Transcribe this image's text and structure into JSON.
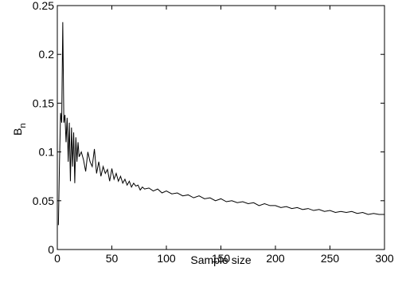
{
  "chart_data": {
    "type": "line",
    "title": "",
    "xlabel": "Sample size",
    "ylabel_main": "B",
    "ylabel_sub": "n",
    "xlim": [
      0,
      300
    ],
    "ylim": [
      0,
      0.25
    ],
    "xticks": [
      0,
      50,
      100,
      150,
      200,
      250,
      300
    ],
    "yticks": [
      0,
      0.05,
      0.1,
      0.15,
      0.2,
      0.25
    ],
    "xtick_labels": [
      "0",
      "50",
      "100",
      "150",
      "200",
      "250",
      "300"
    ],
    "ytick_labels": [
      "0",
      "0.05",
      "0.1",
      "0.15",
      "0.2",
      "0.25"
    ],
    "grid": false,
    "legend": false,
    "line_color": "#000000",
    "series": [
      {
        "x": [
          1,
          2,
          3,
          4,
          5,
          6,
          7,
          8,
          9,
          10,
          11,
          12,
          13,
          14,
          15,
          16,
          17,
          18,
          19,
          20,
          22,
          24,
          26,
          28,
          30,
          32,
          34,
          36,
          38,
          40,
          42,
          44,
          46,
          48,
          50,
          52,
          54,
          56,
          58,
          60,
          62,
          64,
          66,
          68,
          70,
          72,
          74,
          76,
          78,
          80,
          84,
          88,
          92,
          96,
          100,
          105,
          110,
          115,
          120,
          125,
          130,
          135,
          140,
          145,
          150,
          155,
          160,
          165,
          170,
          175,
          180,
          185,
          190,
          195,
          200,
          205,
          210,
          215,
          220,
          225,
          230,
          235,
          240,
          245,
          250,
          255,
          260,
          265,
          270,
          275,
          280,
          285,
          290,
          295,
          300
        ],
        "y": [
          0.025,
          0.09,
          0.14,
          0.13,
          0.233,
          0.13,
          0.138,
          0.11,
          0.135,
          0.09,
          0.13,
          0.07,
          0.125,
          0.085,
          0.12,
          0.068,
          0.115,
          0.09,
          0.11,
          0.095,
          0.1,
          0.092,
          0.08,
          0.1,
          0.09,
          0.085,
          0.103,
          0.078,
          0.09,
          0.075,
          0.085,
          0.078,
          0.082,
          0.07,
          0.083,
          0.072,
          0.078,
          0.07,
          0.075,
          0.068,
          0.072,
          0.066,
          0.07,
          0.064,
          0.068,
          0.065,
          0.066,
          0.061,
          0.064,
          0.062,
          0.063,
          0.06,
          0.062,
          0.058,
          0.06,
          0.057,
          0.058,
          0.055,
          0.056,
          0.053,
          0.055,
          0.052,
          0.053,
          0.05,
          0.052,
          0.049,
          0.05,
          0.048,
          0.049,
          0.047,
          0.048,
          0.045,
          0.047,
          0.045,
          0.045,
          0.043,
          0.044,
          0.042,
          0.043,
          0.041,
          0.042,
          0.04,
          0.041,
          0.039,
          0.04,
          0.038,
          0.039,
          0.038,
          0.039,
          0.037,
          0.038,
          0.036,
          0.037,
          0.036,
          0.036
        ]
      }
    ]
  }
}
